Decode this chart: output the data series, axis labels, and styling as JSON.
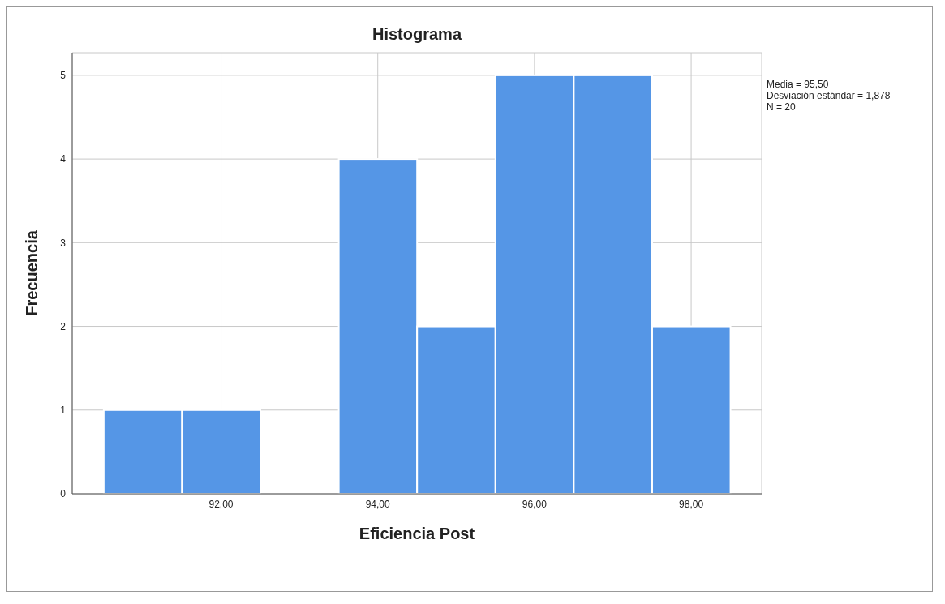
{
  "chart_data": {
    "type": "histogram",
    "title": "Histograma",
    "xlabel": "Eficiencia Post",
    "ylabel": "Frecuencia",
    "bins": [
      90.5,
      91.5,
      92.5,
      93.5,
      94.5,
      95.5,
      96.5,
      97.5,
      98.5
    ],
    "values": [
      1,
      1,
      0,
      4,
      2,
      5,
      5,
      2
    ],
    "color": "#5596e6",
    "xlim": [
      90.1,
      98.9
    ],
    "xticks": [
      {
        "value": 92,
        "label": "92,00"
      },
      {
        "value": 94,
        "label": "94,00"
      },
      {
        "value": 96,
        "label": "96,00"
      },
      {
        "value": 98,
        "label": "98,00"
      }
    ],
    "ylim": [
      0,
      5.27
    ],
    "yticks": [
      0,
      1,
      2,
      3,
      4,
      5
    ],
    "grid": true,
    "annotations": [
      "Media = 95,50",
      "Desviación estándar = 1,878",
      "N = 20"
    ]
  }
}
